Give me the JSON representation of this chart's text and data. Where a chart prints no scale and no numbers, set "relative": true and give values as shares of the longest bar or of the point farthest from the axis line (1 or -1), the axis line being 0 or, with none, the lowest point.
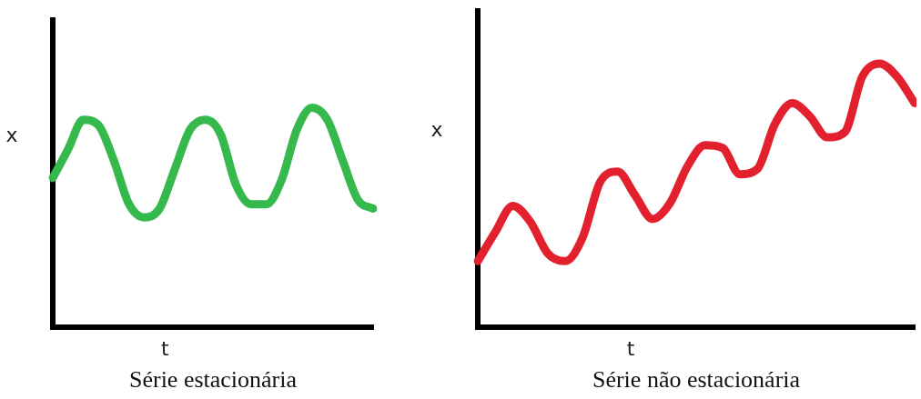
{
  "chart_data": [
    {
      "type": "line",
      "title": "Série estacionária",
      "xlabel": "t",
      "ylabel": "x",
      "relative": true,
      "categories": [
        null,
        null,
        null,
        null,
        null,
        null,
        null,
        null,
        null,
        null,
        null,
        null,
        null,
        null,
        null,
        null,
        null,
        null,
        null,
        null,
        null,
        null
      ],
      "series": [
        {
          "color": "#35b84c",
          "values": [
            0.68,
            0.81,
            0.945,
            0.92,
            0.76,
            0.56,
            0.5,
            0.54,
            0.72,
            0.9,
            0.945,
            0.88,
            0.65,
            0.56,
            0.56,
            0.67,
            0.9,
            1,
            0.945,
            0.76,
            0.58,
            0.54
          ]
        }
      ],
      "legend": false,
      "grid": false,
      "marker": "none"
    },
    {
      "type": "line",
      "title": "Série não estacionária",
      "xlabel": "t",
      "ylabel": "x",
      "relative": true,
      "categories": [
        null,
        null,
        null,
        null,
        null,
        null,
        null,
        null,
        null,
        null,
        null,
        null,
        null,
        null,
        null,
        null,
        null,
        null,
        null,
        null,
        null,
        null,
        null,
        null,
        null,
        null
      ],
      "series": [
        {
          "color": "#e3202e",
          "values": [
            0.25,
            0.36,
            0.46,
            0.4,
            0.28,
            0.25,
            0.34,
            0.55,
            0.59,
            0.5,
            0.41,
            0.47,
            0.61,
            0.69,
            0.68,
            0.58,
            0.6,
            0.77,
            0.85,
            0.8,
            0.72,
            0.74,
            0.95,
            1,
            0.95,
            0.85
          ]
        }
      ],
      "legend": false,
      "grid": false,
      "marker": "none"
    }
  ]
}
